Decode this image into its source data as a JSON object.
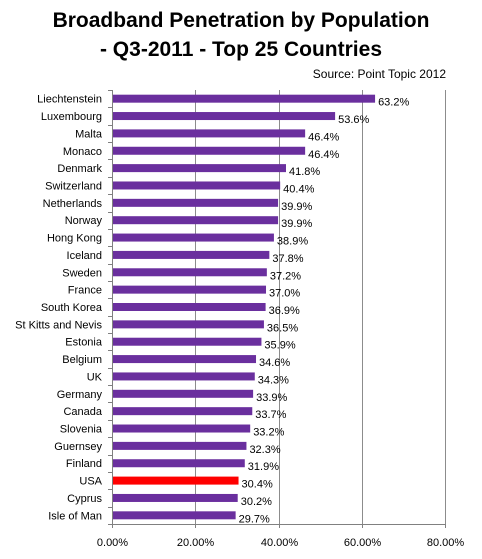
{
  "chart_data": {
    "type": "bar",
    "orientation": "horizontal",
    "title_lines": [
      "Broadband Penetration by Population",
      "- Q3-2011 - Top 25 Countries"
    ],
    "source": "Source: Point Topic 2012",
    "categories": [
      "Liechtenstein",
      "Luxembourg",
      "Malta",
      "Monaco",
      "Denmark",
      "Switzerland",
      "Netherlands",
      "Norway",
      "Hong Kong",
      "Iceland",
      "Sweden",
      "France",
      "South Korea",
      "St Kitts and Nevis",
      "Estonia",
      "Belgium",
      "UK",
      "Germany",
      "Canada",
      "Slovenia",
      "Guernsey",
      "Finland",
      "USA",
      "Cyprus",
      "Isle of Man"
    ],
    "values": [
      63.2,
      53.6,
      46.4,
      46.4,
      41.8,
      40.4,
      39.9,
      39.9,
      38.9,
      37.8,
      37.2,
      37.0,
      36.9,
      36.5,
      35.9,
      34.6,
      34.3,
      33.9,
      33.7,
      33.2,
      32.3,
      31.9,
      30.4,
      30.2,
      29.7
    ],
    "value_labels": [
      "63.2%",
      "53.6%",
      "46.4%",
      "46.4%",
      "41.8%",
      "40.4%",
      "39.9%",
      "39.9%",
      "38.9%",
      "37.8%",
      "37.2%",
      "37.0%",
      "36.9%",
      "36.5%",
      "35.9%",
      "34.6%",
      "34.3%",
      "33.9%",
      "33.7%",
      "33.2%",
      "32.3%",
      "31.9%",
      "30.4%",
      "30.2%",
      "29.7%"
    ],
    "highlight": "USA",
    "xlim": [
      0,
      80
    ],
    "ticks": [
      0,
      20,
      40,
      60,
      80
    ],
    "tick_labels": [
      "0.00%",
      "20.00%",
      "40.00%",
      "60.00%",
      "80.00%"
    ],
    "grid": true,
    "colors": {
      "bar": "#6a2f9e",
      "highlight": "#ff0000",
      "grid": "#8c8c8c",
      "axis": "#808080"
    }
  }
}
